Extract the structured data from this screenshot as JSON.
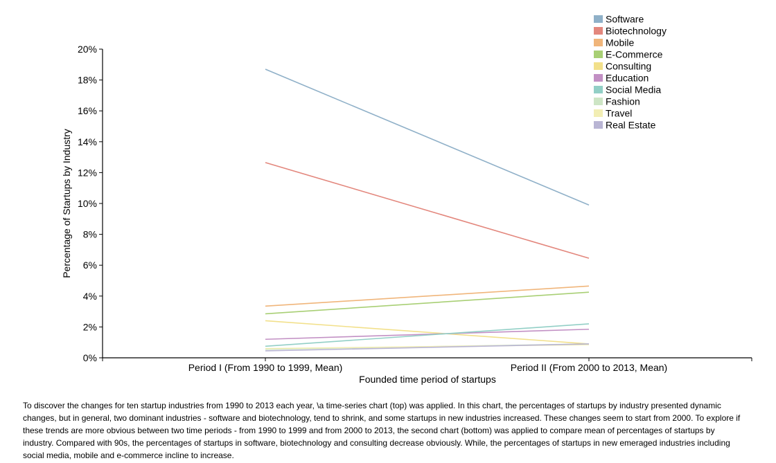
{
  "chart_data": {
    "type": "line",
    "categories": [
      "Period I (From 1990 to 1999, Mean)",
      "Period II (From 2000 to 2013, Mean)"
    ],
    "xlabel": "Founded time period of startups",
    "ylabel": "Percentage of Startups by Industry",
    "ylim": [
      0,
      20
    ],
    "yticks": [
      "0%",
      "2%",
      "4%",
      "6%",
      "8%",
      "10%",
      "12%",
      "14%",
      "16%",
      "18%",
      "20%"
    ],
    "legend_position": "top-right",
    "grid": false,
    "series": [
      {
        "name": "Software",
        "values": [
          18.7,
          9.9
        ],
        "color": "#8fb0c8"
      },
      {
        "name": "Biotechnology",
        "values": [
          12.65,
          6.45
        ],
        "color": "#e3877d"
      },
      {
        "name": "Mobile",
        "values": [
          3.35,
          4.65
        ],
        "color": "#f0b57a"
      },
      {
        "name": "E-Commerce",
        "values": [
          2.85,
          4.25
        ],
        "color": "#a8cf74"
      },
      {
        "name": "Consulting",
        "values": [
          2.4,
          0.9
        ],
        "color": "#f2e08a"
      },
      {
        "name": "Education",
        "values": [
          1.2,
          1.85
        ],
        "color": "#c290c4"
      },
      {
        "name": "Social Media",
        "values": [
          0.75,
          2.2
        ],
        "color": "#92cfc6"
      },
      {
        "name": "Fashion",
        "values": [
          0.55,
          0.9
        ],
        "color": "#cde5c5"
      },
      {
        "name": "Travel",
        "values": [
          0.6,
          0.85
        ],
        "color": "#f2eeb4"
      },
      {
        "name": "Real Estate",
        "values": [
          0.45,
          0.9
        ],
        "color": "#b9b5d4"
      }
    ]
  },
  "description": "To discover the changes for ten startup industries from 1990 to 2013 each year, \\a time-series chart (top) was applied. In this chart, the percentages of startups by industry presented dynamic changes, but in general, two dominant industries - software and biotechnology, tend to shrink, and some startups in new industries increased. These changes seem to start from 2000. To explore if these trends are more obvious between two time periods - from 1990 to 1999 and from 2000 to 2013, the second chart (bottom) was applied to compare mean of percentages of startups by industry. Compared with 90s, the percentages of startups in software, biotechnology and consulting decrease obviously. While, the percentages of startups in new emeraged industries including social media, mobile and e-commerce incline to increase."
}
